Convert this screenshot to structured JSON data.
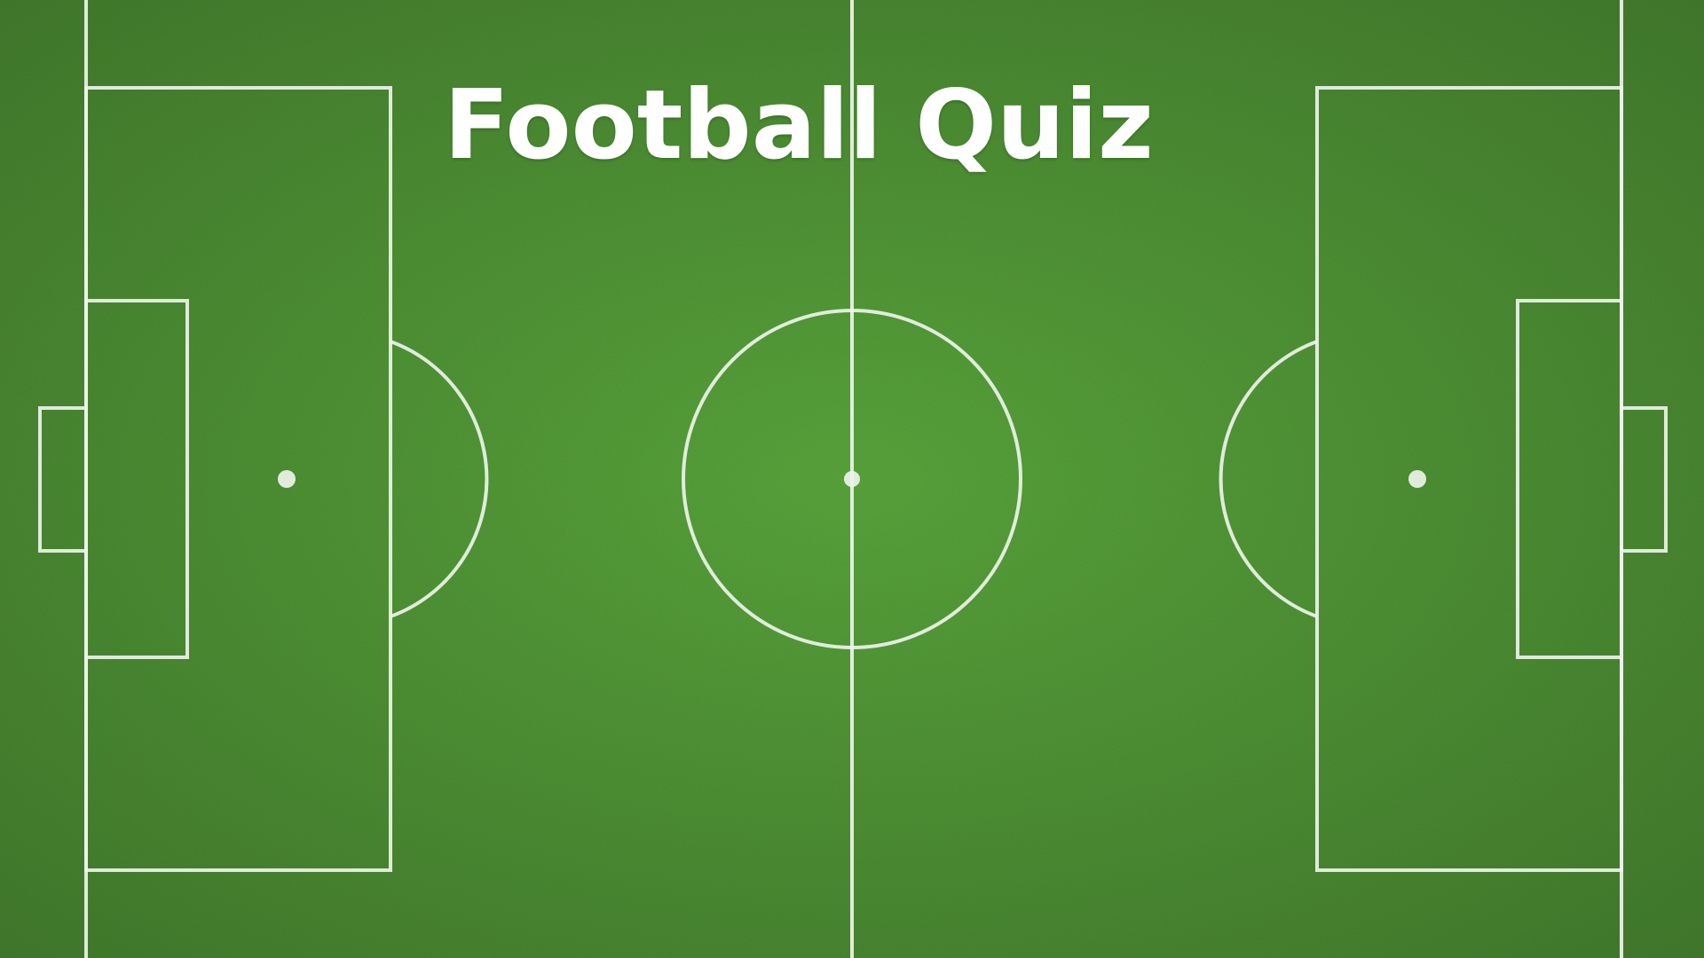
{
  "slide": {
    "title": "Football Quiz",
    "title_color": "#ffffff",
    "background_description_colors": {
      "grass_dark": "#2f7a1c",
      "grass_light": "#57a133",
      "pitch_lines": "#f2f5ee"
    }
  }
}
